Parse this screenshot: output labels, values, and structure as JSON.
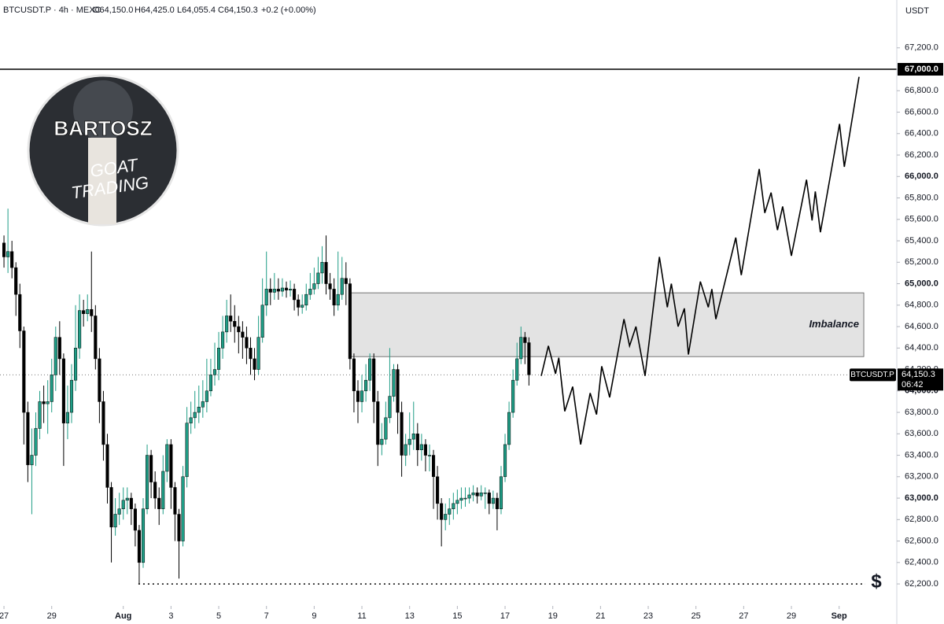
{
  "chart_data": {
    "type": "candlestick",
    "header": {
      "symbol": "BTCUSDT.P · 4h · MEXC",
      "open": "O64,150.0",
      "high": "H64,425.0",
      "low": "L64,055.4",
      "close": "C64,150.3",
      "change": "+0.2 (+0.00%)"
    },
    "currency": "USDT",
    "up_color": "#1f9d86",
    "down_color": "#000000",
    "xlim": [
      -1,
      224.5
    ],
    "ylim": [
      61995,
      67646
    ],
    "xticks": [
      {
        "value": 0,
        "label": "27"
      },
      {
        "value": 12,
        "label": "29"
      },
      {
        "value": 30,
        "label": "Aug"
      },
      {
        "value": 42,
        "label": "3"
      },
      {
        "value": 54,
        "label": "5"
      },
      {
        "value": 66,
        "label": "7"
      },
      {
        "value": 78,
        "label": "9"
      },
      {
        "value": 90,
        "label": "11"
      },
      {
        "value": 102,
        "label": "13"
      },
      {
        "value": 114,
        "label": "15"
      },
      {
        "value": 126,
        "label": "17"
      },
      {
        "value": 138,
        "label": "19"
      },
      {
        "value": 150,
        "label": "21"
      },
      {
        "value": 162,
        "label": "23"
      },
      {
        "value": 174,
        "label": "25"
      },
      {
        "value": 186,
        "label": "27"
      },
      {
        "value": 198,
        "label": "29"
      },
      {
        "value": 210,
        "label": "Sep"
      }
    ],
    "yticks": [
      {
        "value": 62200,
        "label": "62,200.0"
      },
      {
        "value": 62400,
        "label": "62,400.0"
      },
      {
        "value": 62600,
        "label": "62,600.0"
      },
      {
        "value": 62800,
        "label": "62,800.0"
      },
      {
        "value": 63000,
        "label": "63,000.0"
      },
      {
        "value": 63200,
        "label": "63,200.0"
      },
      {
        "value": 63400,
        "label": "63,400.0"
      },
      {
        "value": 63600,
        "label": "63,600.0"
      },
      {
        "value": 63800,
        "label": "63,800.0"
      },
      {
        "value": 64000,
        "label": "64,000.0"
      },
      {
        "value": 64200,
        "label": "64,200.0"
      },
      {
        "value": 64400,
        "label": "64,400.0"
      },
      {
        "value": 64600,
        "label": "64,600.0"
      },
      {
        "value": 64800,
        "label": "64,800.0"
      },
      {
        "value": 65000,
        "label": "65,000.0"
      },
      {
        "value": 65200,
        "label": "65,200.0"
      },
      {
        "value": 65400,
        "label": "65,400.0"
      },
      {
        "value": 65600,
        "label": "65,600.0"
      },
      {
        "value": 65800,
        "label": "65,800.0"
      },
      {
        "value": 66000,
        "label": "66,000.0"
      },
      {
        "value": 66200,
        "label": "66,200.0"
      },
      {
        "value": 66400,
        "label": "66,400.0"
      },
      {
        "value": 66600,
        "label": "66,600.0"
      },
      {
        "value": 66800,
        "label": "66,800.0"
      },
      {
        "value": 67000,
        "label": "67,000.0"
      },
      {
        "value": 67200,
        "label": "67,200.0"
      }
    ],
    "open": [
      65380,
      65250,
      65300,
      65150,
      64900,
      64560,
      63800,
      63310,
      63400,
      63650,
      63900,
      63880,
      63900,
      64150,
      64500,
      64300,
      63700,
      63800,
      64100,
      64400,
      64750,
      64720,
      64760,
      64700,
      64300,
      63900,
      63500,
      63100,
      62730,
      62850,
      62900,
      62980,
      63000,
      62900,
      62700,
      62400,
      62900,
      63400,
      63150,
      63000,
      62900,
      63250,
      63500,
      63100,
      62850,
      62600,
      63200,
      63700,
      63750,
      63800,
      63850,
      63900,
      64000,
      64150,
      64200,
      64400,
      64550,
      64700,
      64650,
      64600,
      64550,
      64500,
      64400,
      64300,
      64200,
      64500,
      64800,
      64950,
      64920,
      64950,
      64930,
      64960,
      64940,
      64950,
      64850,
      64780,
      64800,
      64900,
      64950,
      65000,
      65100,
      65200,
      65000,
      64950,
      64800,
      64900,
      65050,
      65000,
      64300,
      64000,
      63900,
      64000,
      64100,
      64300,
      63900,
      63500,
      63550,
      63750,
      63950,
      64200,
      63800,
      63400,
      63500,
      63550,
      63600,
      63450,
      63500,
      63400,
      63400,
      63200,
      62950,
      62800,
      62850,
      62900,
      62950,
      62980,
      63000,
      63000,
      63030,
      63050,
      63020,
      63050,
      63050,
      62950,
      63000,
      62900,
      63200,
      63500,
      63800,
      64100,
      64300,
      64500,
      64450
    ],
    "high": [
      65450,
      65700,
      65400,
      65200,
      65000,
      64600,
      63900,
      63650,
      63800,
      64000,
      64050,
      64100,
      64300,
      64600,
      64650,
      64350,
      64050,
      64250,
      64800,
      64900,
      64850,
      64900,
      65300,
      64800,
      64400,
      64000,
      63600,
      63150,
      63000,
      63050,
      63100,
      63100,
      63050,
      62950,
      62750,
      63000,
      63500,
      63450,
      63250,
      63100,
      63400,
      63550,
      63550,
      63150,
      62900,
      63300,
      63850,
      63900,
      64000,
      64050,
      64100,
      64300,
      64300,
      64450,
      64550,
      64700,
      64850,
      64900,
      64800,
      64700,
      64650,
      64600,
      64500,
      64400,
      64700,
      65050,
      65300,
      65050,
      65100,
      65050,
      65050,
      65020,
      65030,
      65000,
      64900,
      64900,
      65000,
      65100,
      65150,
      65250,
      65350,
      65450,
      65100,
      65050,
      65300,
      65250,
      65200,
      65050,
      64350,
      64100,
      64150,
      64250,
      64350,
      64350,
      64000,
      63700,
      63900,
      64400,
      64250,
      64250,
      63900,
      63600,
      63800,
      63900,
      63700,
      63600,
      63550,
      63500,
      63450,
      63300,
      63000,
      62950,
      63000,
      63050,
      63080,
      63100,
      63100,
      63100,
      63120,
      63100,
      63120,
      63100,
      63080,
      63070,
      63050,
      63300,
      63600,
      63900,
      64200,
      64450,
      64600,
      64550,
      64500
    ],
    "low": [
      65150,
      65100,
      65050,
      64700,
      64400,
      63500,
      63150,
      62850,
      63300,
      63550,
      63700,
      63600,
      63800,
      64000,
      64150,
      63300,
      63550,
      63700,
      64000,
      64300,
      64600,
      64650,
      64550,
      64200,
      63700,
      63350,
      62950,
      62400,
      62650,
      62750,
      62800,
      62850,
      62750,
      62550,
      62200,
      62350,
      62850,
      63000,
      62900,
      62750,
      62850,
      63150,
      62900,
      62600,
      62250,
      62550,
      63100,
      63600,
      63650,
      63700,
      63750,
      63800,
      63950,
      64050,
      64100,
      64300,
      64450,
      64550,
      64450,
      64350,
      64300,
      64250,
      64150,
      64100,
      64150,
      64450,
      64700,
      64800,
      64850,
      64850,
      64880,
      64870,
      64880,
      64750,
      64700,
      64720,
      64750,
      64850,
      64900,
      64950,
      65000,
      64900,
      64850,
      64700,
      64750,
      64850,
      64800,
      64200,
      63800,
      63700,
      63800,
      63900,
      64000,
      63700,
      63300,
      63400,
      63500,
      63700,
      63900,
      63600,
      63200,
      63300,
      63400,
      63450,
      63300,
      63350,
      63250,
      63250,
      62900,
      62800,
      62550,
      62700,
      62750,
      62800,
      62850,
      62900,
      62920,
      62950,
      62970,
      62950,
      62980,
      62900,
      62850,
      62900,
      62700,
      62850,
      63150,
      63450,
      63750,
      64050,
      64250,
      64250,
      64050
    ],
    "close": [
      65250,
      65300,
      65150,
      64900,
      64560,
      63800,
      63310,
      63400,
      63650,
      63900,
      63880,
      63900,
      64150,
      64500,
      64300,
      63700,
      63800,
      64100,
      64400,
      64750,
      64720,
      64760,
      64700,
      64300,
      63900,
      63500,
      63100,
      62730,
      62850,
      62900,
      62980,
      63000,
      62900,
      62700,
      62400,
      62900,
      63400,
      63150,
      63000,
      62900,
      63250,
      63500,
      63100,
      62850,
      62600,
      63200,
      63700,
      63750,
      63800,
      63850,
      63900,
      64000,
      64150,
      64200,
      64400,
      64550,
      64700,
      64650,
      64600,
      64550,
      64500,
      64400,
      64300,
      64200,
      64500,
      64800,
      64950,
      64920,
      64950,
      64930,
      64960,
      64940,
      64950,
      64850,
      64780,
      64800,
      64900,
      64950,
      65000,
      65100,
      65200,
      65000,
      64950,
      64800,
      64900,
      65050,
      65000,
      64300,
      64000,
      63900,
      64000,
      64100,
      64300,
      63900,
      63500,
      63550,
      63750,
      63950,
      64200,
      63800,
      63400,
      63500,
      63550,
      63600,
      63450,
      63500,
      63400,
      63400,
      63200,
      62950,
      62800,
      62850,
      62900,
      62950,
      62980,
      63000,
      63000,
      63030,
      63050,
      63020,
      63050,
      63050,
      62950,
      63000,
      62900,
      63200,
      63500,
      63800,
      64100,
      64300,
      64500,
      64450,
      64150
    ],
    "projection": {
      "color": "#000000",
      "x": [
        135.1,
        136.9,
        138.7,
        139.5,
        141.0,
        143.0,
        145.0,
        147.4,
        149.0,
        150.3,
        152.3,
        155.9,
        157.3,
        158.9,
        161.2,
        164.8,
        166.8,
        167.8,
        169.5,
        171.1,
        172.1,
        175.1,
        177.1,
        178.0,
        179.0,
        184.0,
        185.4,
        189.9,
        191.3,
        192.9,
        194.5,
        195.8,
        198.0,
        201.8,
        203.2,
        204.0,
        205.3,
        210.1,
        211.3,
        215.0
      ],
      "values": [
        64140,
        64420,
        64160,
        64310,
        63810,
        64040,
        63500,
        63980,
        63780,
        64230,
        63940,
        64670,
        64420,
        64600,
        64140,
        65250,
        64780,
        65000,
        64600,
        64770,
        64340,
        65020,
        64780,
        64950,
        64670,
        65430,
        65080,
        66070,
        65660,
        65850,
        65500,
        65720,
        65260,
        65970,
        65590,
        65860,
        65480,
        66490,
        66090,
        66930
      ]
    },
    "zone": {
      "label": "Imbalance",
      "x": [
        86.8,
        216.2
      ],
      "y": [
        64320,
        64915
      ]
    },
    "level": 67000,
    "target": {
      "value": 62200,
      "x": 33.8,
      "symbol": "$"
    },
    "last_price": {
      "value": 64150.3,
      "label": "64,150.3",
      "symbol": "BTCUSDT.P",
      "countdown": "06:42"
    }
  },
  "logo": {
    "name": "BARTOSZ",
    "line1": "GOAT",
    "line2": "TRADING"
  }
}
